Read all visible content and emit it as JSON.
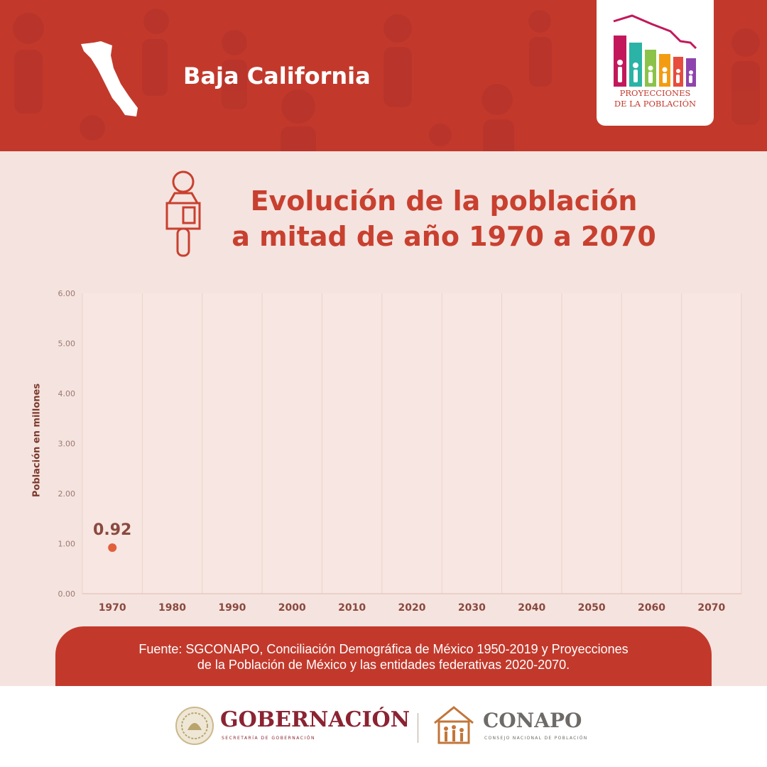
{
  "header": {
    "state_name": "Baja California",
    "logo_line1": "PROYECCIONES",
    "logo_line2": "DE LA POBLACIÓN"
  },
  "title": {
    "line1": "Evolución de la población",
    "line2": "a mitad de año 1970 a 2070"
  },
  "chart_data": {
    "type": "scatter",
    "title": "Evolución de la población a mitad de año 1970 a 2070",
    "xlabel": "",
    "ylabel": "Población en millones",
    "x_ticks": [
      "1970",
      "1980",
      "1990",
      "2000",
      "2010",
      "2020",
      "2030",
      "2040",
      "2050",
      "2060",
      "2070"
    ],
    "y_ticks": [
      "0.00",
      "1.00",
      "2.00",
      "3.00",
      "4.00",
      "5.00",
      "6.00"
    ],
    "ylim": [
      0,
      6
    ],
    "grid": true,
    "series": [
      {
        "points": [
          {
            "x": "1970",
            "y": 0.92,
            "label": "0.92"
          }
        ]
      }
    ]
  },
  "source": {
    "line1": "Fuente: SGCONAPO, Conciliación Demográfica de México 1950-2019 y Proyecciones",
    "line2": "de la Población de México  y las entidades federativas 2020-2070."
  },
  "footer": {
    "gob_name": "GOBERNACIÓN",
    "gob_sub": "SECRETARÍA DE GOBERNACIÓN",
    "conapo_name": "CONAPO",
    "conapo_sub": "CONSEJO NACIONAL DE POBLACIÓN"
  },
  "colors": {
    "header": "#c2392c",
    "background": "#f5e3df",
    "title": "#c8402f",
    "point": "#e0603c"
  }
}
